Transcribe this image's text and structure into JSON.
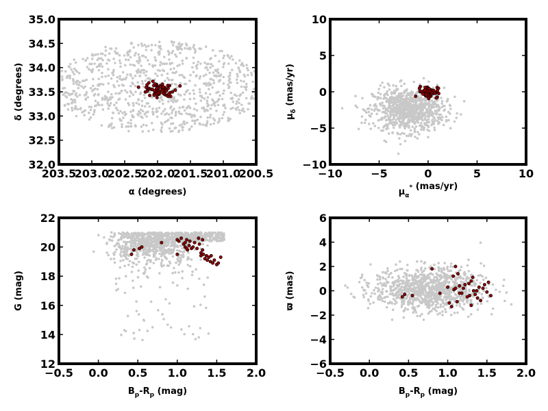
{
  "colors": {
    "background": "#c8c8c8",
    "member": "#8b0000",
    "member_edge": "#000000",
    "frame": "#000000"
  },
  "chart_data": [
    {
      "type": "scatter",
      "xlabel": "α (degrees)",
      "ylabel": "δ (degrees)",
      "xlim": [
        203.5,
        200.5
      ],
      "ylim": [
        32.0,
        35.0
      ],
      "xticks": [
        "203.5",
        "203.0",
        "202.5",
        "202.0",
        "201.5",
        "201.0",
        "200.5"
      ],
      "yticks": [
        "32.0",
        "32.5",
        "33.0",
        "33.5",
        "34.0",
        "34.5",
        "35.0"
      ],
      "series": [
        {
          "role": "field",
          "distribution": "ellipse",
          "center": [
            202.0,
            33.6
          ],
          "radii": [
            1.6,
            0.95
          ],
          "n": 900
        },
        {
          "role": "members",
          "distribution": "cluster",
          "center": [
            202.0,
            33.55
          ],
          "spread": [
            0.12,
            0.07
          ],
          "n": 70
        }
      ]
    },
    {
      "type": "scatter",
      "xlabel": "μ",
      "ylabel": "μ",
      "xlim": [
        -10,
        10
      ],
      "ylim": [
        -10,
        10
      ],
      "xticks": [
        "−10",
        "−5",
        "0",
        "5",
        "10"
      ],
      "yticks": [
        "−10",
        "−5",
        "0",
        "5",
        "10"
      ],
      "series": [
        {
          "role": "field",
          "distribution": "blob",
          "center": [
            -2.0,
            -2.5
          ],
          "spread": [
            1.8,
            1.5
          ],
          "n": 900
        },
        {
          "role": "members",
          "distribution": "cluster",
          "center": [
            0.0,
            0.0
          ],
          "spread": [
            0.5,
            0.4
          ],
          "n": 65
        }
      ]
    },
    {
      "type": "scatter",
      "xlabel": "B",
      "ylabel": "G (mag)",
      "xlim": [
        -0.5,
        2.0
      ],
      "ylim": [
        12,
        22
      ],
      "xticks": [
        "−0.5",
        "0.0",
        "0.5",
        "1.0",
        "1.5",
        "2.0"
      ],
      "yticks": [
        "12",
        "14",
        "16",
        "18",
        "20",
        "22"
      ],
      "series": [
        {
          "role": "field",
          "distribution": "cmd",
          "n": 1000
        },
        {
          "role": "members",
          "distribution": "sequence",
          "points": [
            [
              0.42,
              19.5
            ],
            [
              0.45,
              19.8
            ],
            [
              0.52,
              19.9
            ],
            [
              0.55,
              20.0
            ],
            [
              0.8,
              20.3
            ],
            [
              1.0,
              20.5
            ],
            [
              1.02,
              20.4
            ],
            [
              1.05,
              20.6
            ],
            [
              1.08,
              20.2
            ],
            [
              1.1,
              20.0
            ],
            [
              1.1,
              20.3
            ],
            [
              1.12,
              20.5
            ],
            [
              1.13,
              19.8
            ],
            [
              1.15,
              20.1
            ],
            [
              1.16,
              20.4
            ],
            [
              1.18,
              19.9
            ],
            [
              1.2,
              20.0
            ],
            [
              1.22,
              20.3
            ],
            [
              1.25,
              19.9
            ],
            [
              1.27,
              20.6
            ],
            [
              1.28,
              20.2
            ],
            [
              1.3,
              19.6
            ],
            [
              1.3,
              19.4
            ],
            [
              1.32,
              19.8
            ],
            [
              1.33,
              19.5
            ],
            [
              1.35,
              19.2
            ],
            [
              1.37,
              19.4
            ],
            [
              1.38,
              19.1
            ],
            [
              1.4,
              19.3
            ],
            [
              1.42,
              19.0
            ],
            [
              1.43,
              19.4
            ],
            [
              1.45,
              18.9
            ],
            [
              1.47,
              19.1
            ],
            [
              1.5,
              18.8
            ],
            [
              1.52,
              18.9
            ],
            [
              1.55,
              19.3
            ],
            [
              1.32,
              20.5
            ],
            [
              1.0,
              19.5
            ],
            [
              1.12,
              19.9
            ]
          ]
        }
      ]
    },
    {
      "type": "scatter",
      "xlabel": "B",
      "ylabel": "ϖ (mas)",
      "xlim": [
        -0.5,
        2.0
      ],
      "ylim": [
        -6,
        6
      ],
      "xticks": [
        "−0.5",
        "0.0",
        "0.5",
        "1.0",
        "1.5",
        "2.0"
      ],
      "yticks": [
        "−6",
        "−4",
        "−2",
        "0",
        "2",
        "4",
        "6"
      ],
      "series": [
        {
          "role": "field",
          "distribution": "blob",
          "center": [
            0.75,
            0.1
          ],
          "spread": [
            0.35,
            0.9
          ],
          "n": 1000
        },
        {
          "role": "members",
          "distribution": "sequence",
          "points": [
            [
              0.42,
              -0.5
            ],
            [
              0.45,
              -0.3
            ],
            [
              0.55,
              -0.4
            ],
            [
              0.8,
              1.8
            ],
            [
              0.9,
              -0.2
            ],
            [
              1.0,
              0.3
            ],
            [
              1.02,
              -1.0
            ],
            [
              1.05,
              -1.3
            ],
            [
              1.07,
              1.2
            ],
            [
              1.08,
              0.1
            ],
            [
              1.1,
              2.0
            ],
            [
              1.1,
              0.2
            ],
            [
              1.12,
              -0.9
            ],
            [
              1.13,
              1.4
            ],
            [
              1.15,
              0.4
            ],
            [
              1.18,
              -0.2
            ],
            [
              1.2,
              0.2
            ],
            [
              1.22,
              0.5
            ],
            [
              1.25,
              -0.5
            ],
            [
              1.27,
              0.6
            ],
            [
              1.3,
              -1.2
            ],
            [
              1.3,
              0.8
            ],
            [
              1.32,
              1.1
            ],
            [
              1.35,
              -0.3
            ],
            [
              1.37,
              0.0
            ],
            [
              1.4,
              0.3
            ],
            [
              1.42,
              -0.8
            ],
            [
              1.45,
              0.2
            ],
            [
              1.47,
              0.5
            ],
            [
              1.5,
              -0.1
            ],
            [
              1.52,
              0.7
            ],
            [
              1.55,
              -0.4
            ],
            [
              1.33,
              0.0
            ],
            [
              1.38,
              -0.6
            ],
            [
              1.15,
              -0.2
            ],
            [
              1.28,
              -0.4
            ]
          ]
        }
      ]
    }
  ],
  "panels": [
    {
      "xlabel": {
        "sym": "α",
        "rest": " (degrees)"
      },
      "ylabel": {
        "sym": "δ",
        "rest": " (degrees)"
      }
    },
    {
      "xlabel": {
        "sym": "μ",
        "sub": "α",
        "sup": "*",
        "rest": " (mas/yr)"
      },
      "ylabel": {
        "sym": "μ",
        "sub": "δ",
        "rest": " (mas/yr)"
      }
    },
    {
      "xlabel": {
        "sym": "B",
        "sub": "p",
        "mid": "-R",
        "sub2": "p",
        "rest": "  (mag)"
      },
      "ylabel": {
        "sym": "G",
        "rest": " (mag)"
      }
    },
    {
      "xlabel": {
        "sym": "B",
        "sub": "p",
        "mid": "-R",
        "sub2": "p",
        "rest": "  (mag)"
      },
      "ylabel": {
        "sym": "ϖ",
        "rest": " (mas)"
      }
    }
  ]
}
